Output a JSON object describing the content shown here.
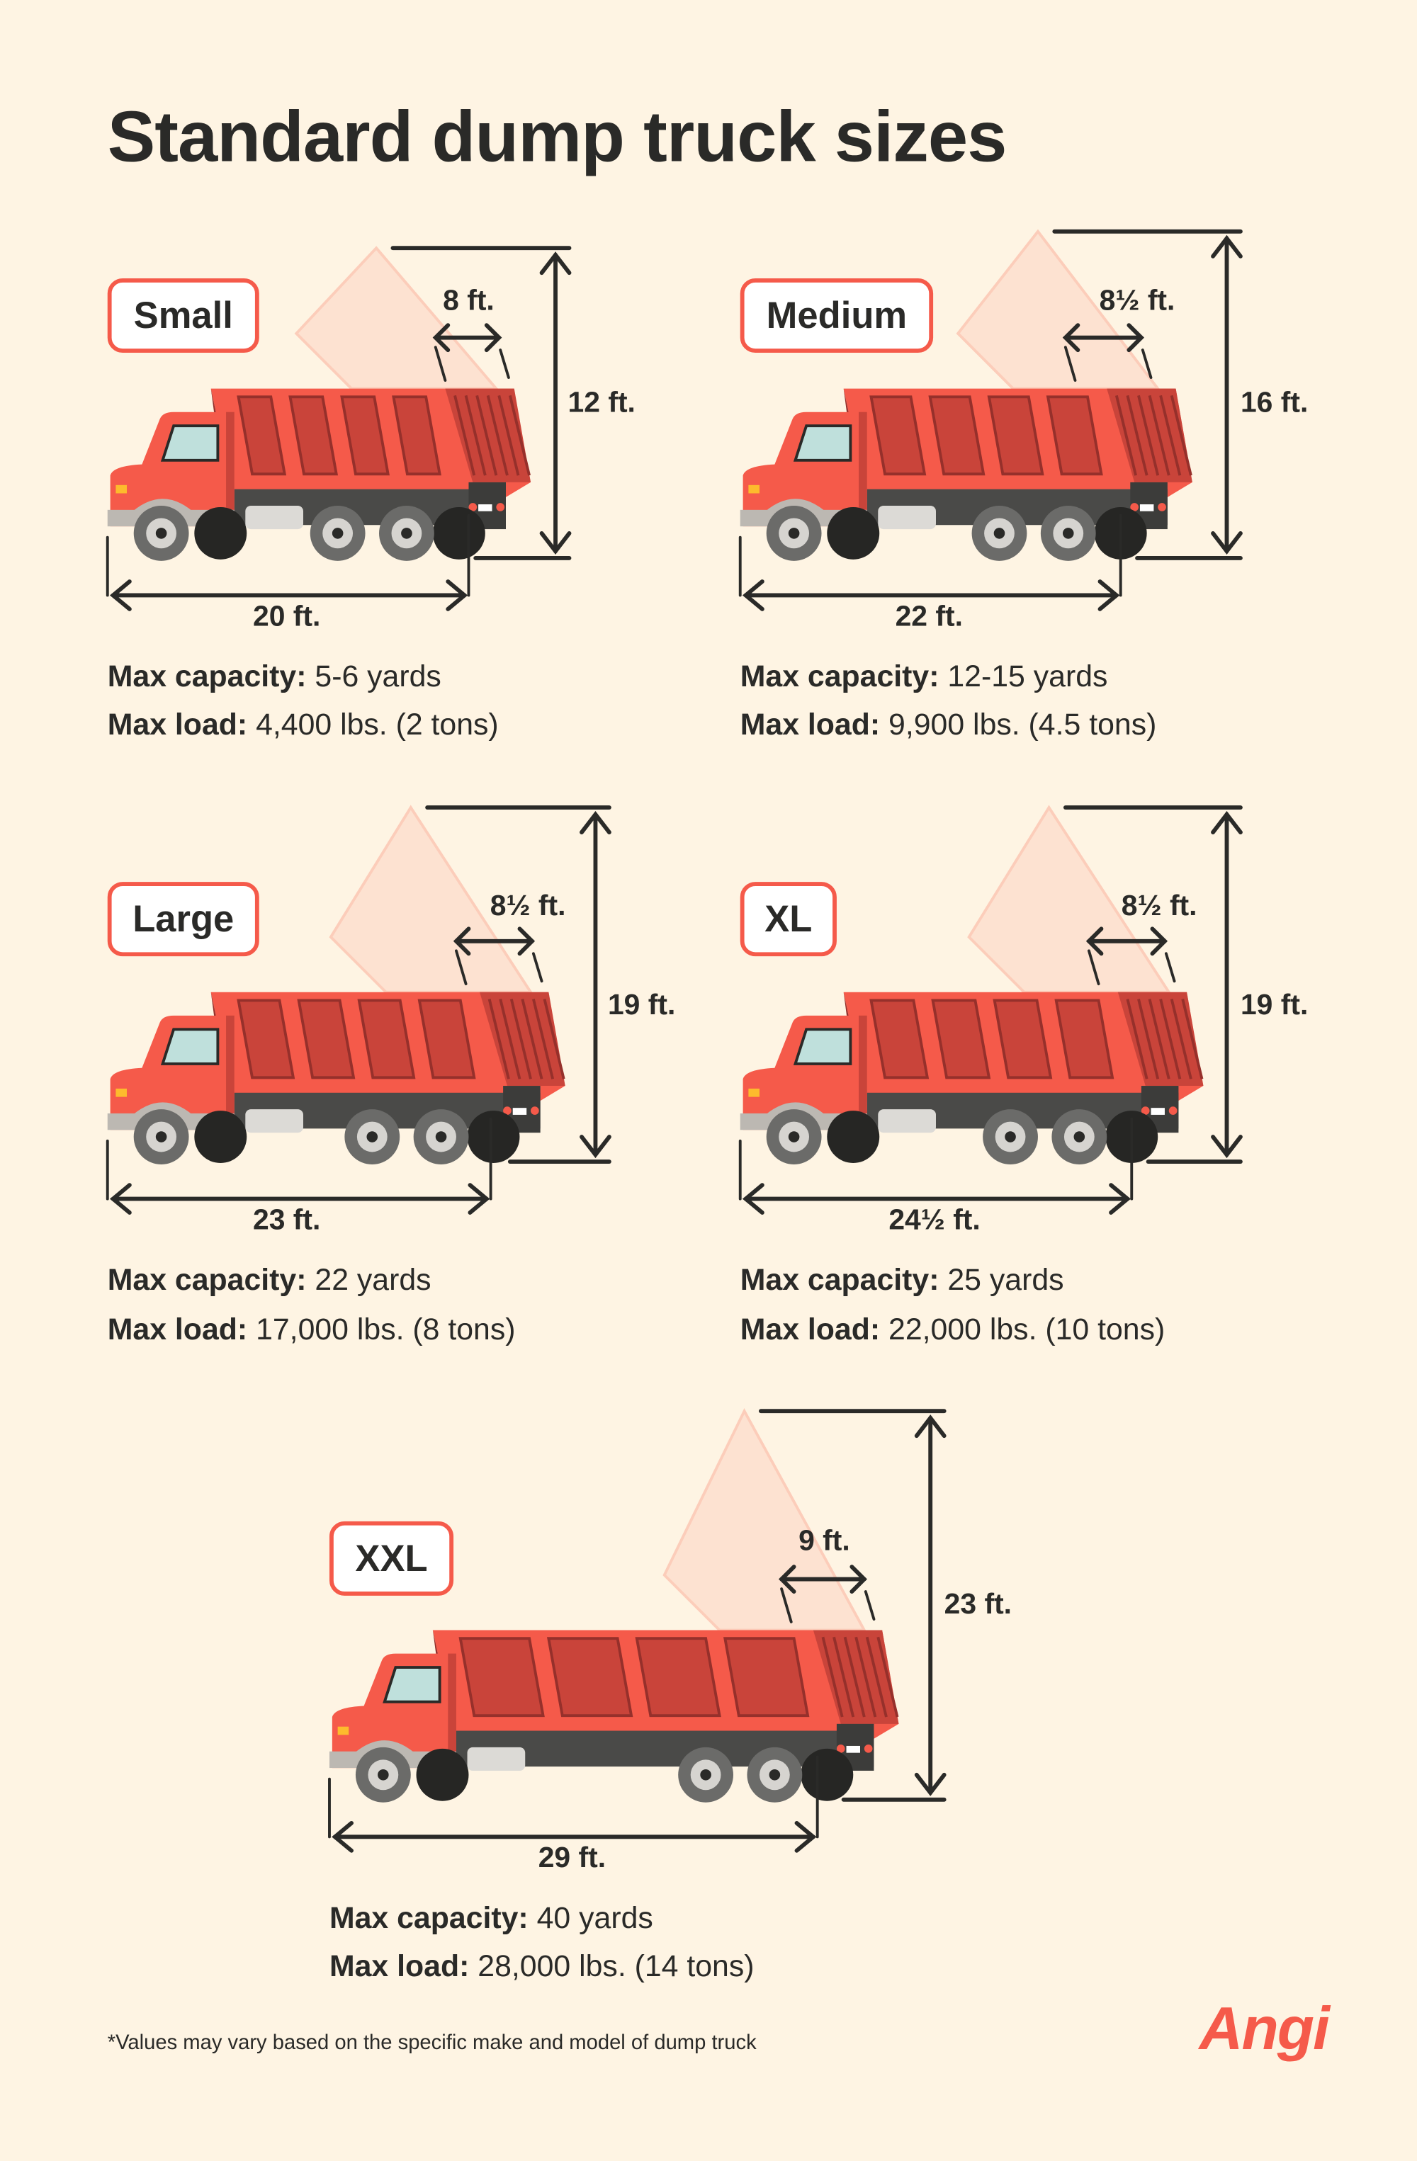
{
  "title": "Standard dump truck sizes",
  "colors": {
    "background": "#fef4e3",
    "accent": "#f55a4a",
    "text": "#2a2a28"
  },
  "trucks": [
    {
      "name": "Small",
      "height": "12 ft.",
      "width": "8 ft.",
      "length": "20 ft.",
      "capacity_label": "Max capacity:",
      "capacity": "5-6 yards",
      "load_label": "Max load:",
      "load": "4,400 lbs. (2 tons)"
    },
    {
      "name": "Medium",
      "height": "16 ft.",
      "width": "8½ ft.",
      "length": "22 ft.",
      "capacity_label": "Max capacity:",
      "capacity": "12-15 yards",
      "load_label": "Max load:",
      "load": "9,900 lbs. (4.5 tons)"
    },
    {
      "name": "Large",
      "height": "19 ft.",
      "width": "8½ ft.",
      "length": "23 ft.",
      "capacity_label": "Max capacity:",
      "capacity": "22 yards",
      "load_label": "Max load:",
      "load": "17,000 lbs. (8 tons)"
    },
    {
      "name": "XL",
      "height": "19 ft.",
      "width": "8½ ft.",
      "length": "24½ ft.",
      "capacity_label": "Max capacity:",
      "capacity": "25 yards",
      "load_label": "Max load:",
      "load": "22,000 lbs. (10 tons)"
    },
    {
      "name": "XXL",
      "height": "23 ft.",
      "width": "9 ft.",
      "length": "29 ft.",
      "capacity_label": "Max capacity:",
      "capacity": "40 yards",
      "load_label": "Max load:",
      "load": "28,000 lbs. (14 tons)"
    }
  ],
  "footnote": "*Values may vary based on the specific make and model of dump truck",
  "logo": "Angi"
}
